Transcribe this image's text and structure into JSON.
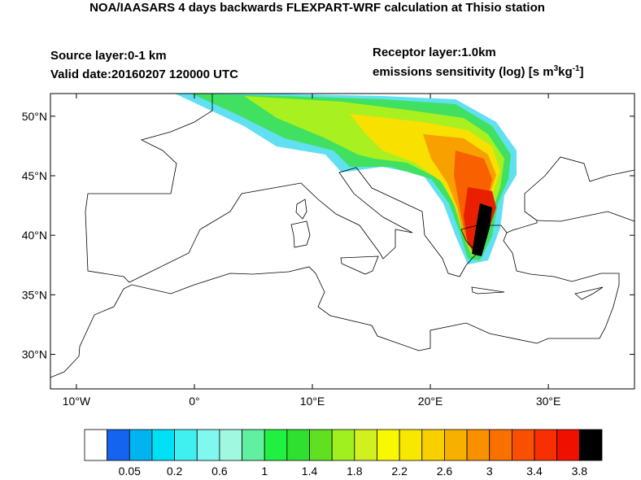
{
  "header": {
    "title": "NOA/IAASARS 4 days backwards FLEXPART-WRF calculation at Thisio station",
    "source_layer": "Source layer:0-1 km",
    "valid_date": "Valid date:20160207 120000 UTC",
    "receptor_layer": "Receptor layer:1.0km",
    "units_parts": [
      "emissions sensitivity (log) [s m",
      "3",
      "kg",
      "-1",
      "]"
    ]
  },
  "map": {
    "lon_range": [
      -12.2,
      37.3
    ],
    "lat_range": [
      27.1,
      51.9
    ],
    "lat_ticks": [
      {
        "value": 50,
        "label": "50°N"
      },
      {
        "value": 45,
        "label": "45°N"
      },
      {
        "value": 40,
        "label": "40°N"
      },
      {
        "value": 35,
        "label": "35°N"
      },
      {
        "value": 30,
        "label": "30°N"
      }
    ],
    "lon_ticks": [
      {
        "value": -10,
        "label": "10°W"
      },
      {
        "value": 0,
        "label": "0°"
      },
      {
        "value": 10,
        "label": "10°E"
      },
      {
        "value": 20,
        "label": "20°E"
      },
      {
        "value": 30,
        "label": "30°E"
      }
    ]
  },
  "colorbar": {
    "colors": [
      "#ffffff",
      "#1464f0",
      "#00b4f0",
      "#00e0f5",
      "#40f0f0",
      "#80f8f0",
      "#a0f8e0",
      "#60f0a0",
      "#20f040",
      "#30e030",
      "#60e020",
      "#a0f020",
      "#d0f020",
      "#f8f800",
      "#f8e800",
      "#f8d000",
      "#f8b000",
      "#f89000",
      "#f87000",
      "#f85000",
      "#f83000",
      "#f01000",
      "#000000"
    ],
    "ticks": [
      0.05,
      0.2,
      0.6,
      1,
      1.4,
      1.8,
      2.2,
      2.6,
      3,
      3.4,
      3.8
    ]
  }
}
